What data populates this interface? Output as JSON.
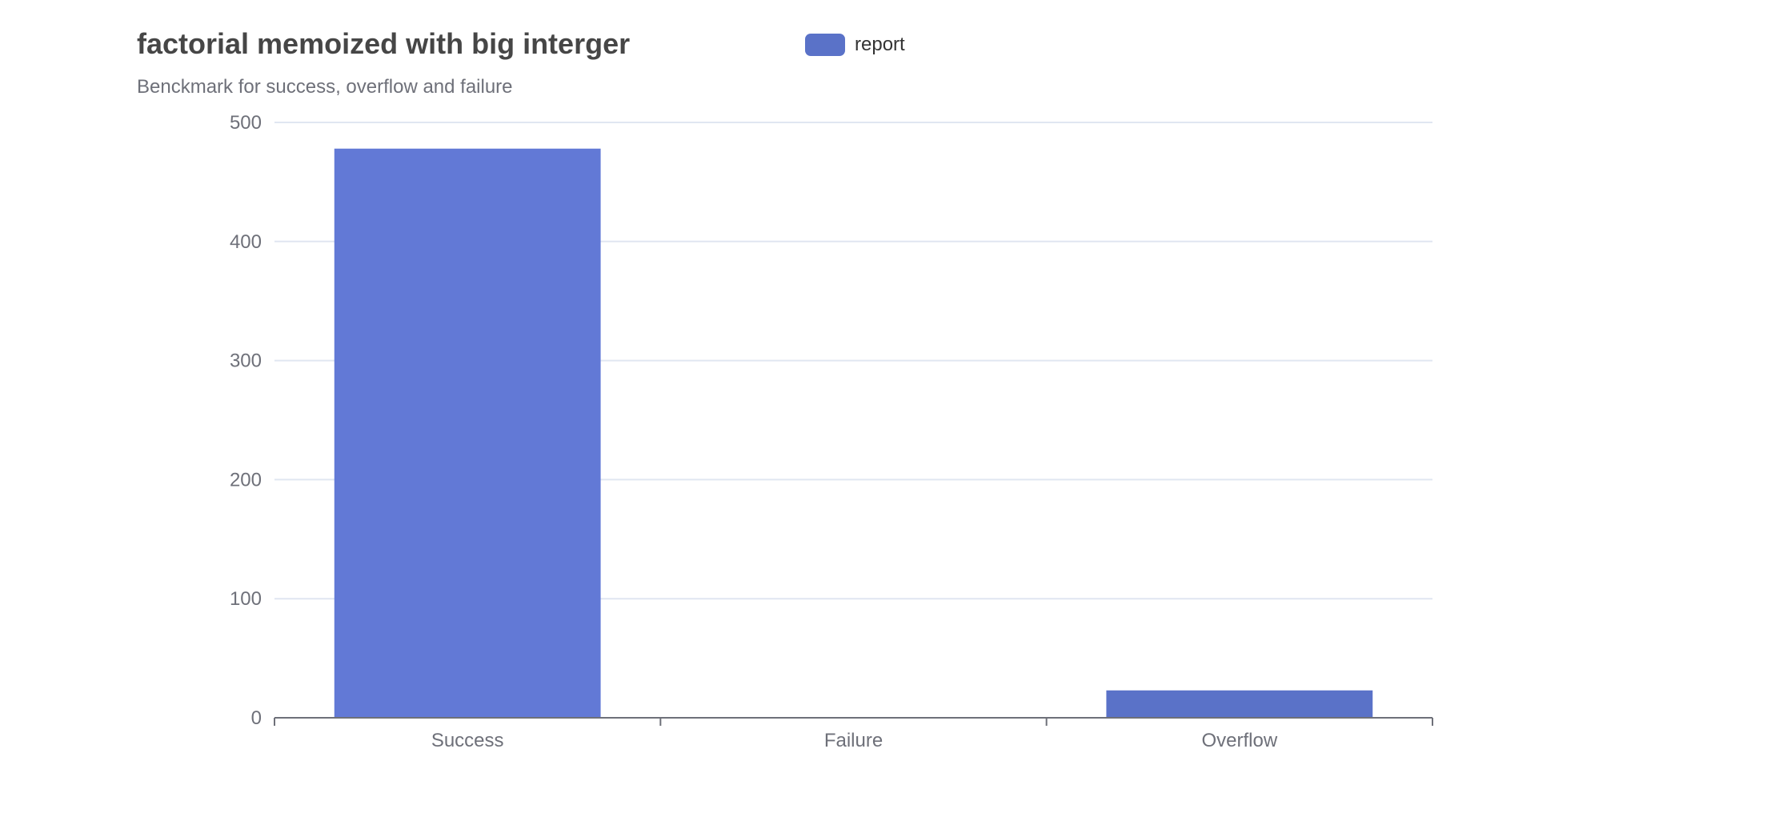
{
  "chart_data": {
    "type": "bar",
    "title": "factorial memoized with big interger",
    "subtitle": "Benckmark for success, overflow and failure",
    "categories": [
      "Success",
      "Failure",
      "Overflow"
    ],
    "series": [
      {
        "name": "report",
        "values": [
          478,
          0,
          23
        ],
        "bar_colors": [
          "#6279d6",
          "#6279d6",
          "#5a72c8"
        ]
      }
    ],
    "ylim": [
      0,
      500
    ],
    "yticks": [
      0,
      100,
      200,
      300,
      400,
      500
    ],
    "grid": true,
    "legend_position": "top-center"
  },
  "colors": {
    "legend_swatch": "#5a72c8",
    "axis": "#6e7079",
    "grid": "#e0e6f1"
  }
}
